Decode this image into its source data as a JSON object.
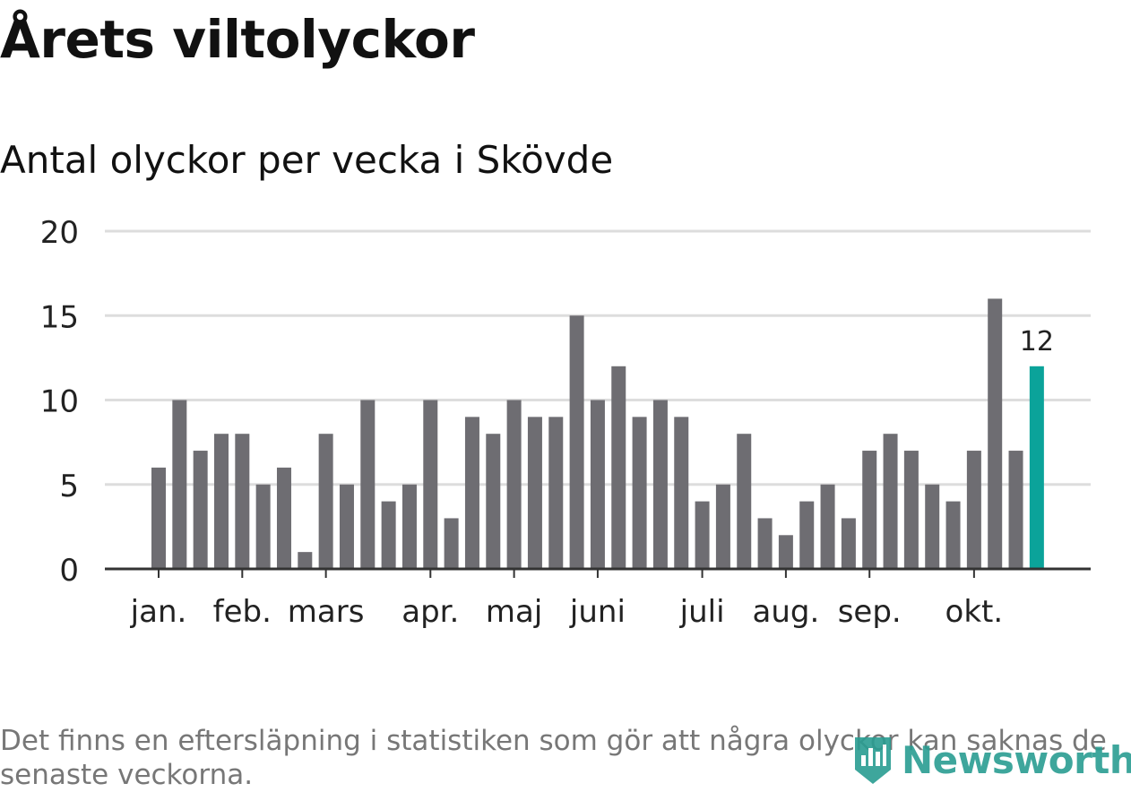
{
  "title": "Årets viltolyckor",
  "subtitle": "Antal olyckor per vecka i Skövde",
  "footnote": "Det finns en eftersläpning i statistiken som gör att några olyckor kan saknas de senaste veckorna.",
  "logo": {
    "text": "Newsworthy",
    "icon": "bar-chart-icon"
  },
  "colors": {
    "bar": "#6e6d72",
    "highlight": "#0ba39a",
    "grid": "#dddddd",
    "axis": "#333333"
  },
  "chart_data": {
    "type": "bar",
    "title": "Antal olyckor per vecka i Skövde",
    "xlabel": "",
    "ylabel": "",
    "ylim": [
      0,
      20
    ],
    "yticks": [
      0,
      5,
      10,
      15,
      20
    ],
    "grid": true,
    "values": [
      6,
      10,
      7,
      8,
      8,
      5,
      6,
      1,
      8,
      5,
      10,
      4,
      5,
      10,
      3,
      9,
      8,
      10,
      9,
      9,
      15,
      10,
      12,
      9,
      10,
      9,
      4,
      5,
      8,
      3,
      2,
      4,
      5,
      3,
      7,
      8,
      7,
      5,
      4,
      7,
      16,
      7,
      12
    ],
    "highlight_index": 42,
    "highlight_label": "12",
    "month_labels": [
      {
        "label": "jan.",
        "bar_index": 0.5
      },
      {
        "label": "feb.",
        "bar_index": 4.5
      },
      {
        "label": "mars",
        "bar_index": 8.5
      },
      {
        "label": "apr.",
        "bar_index": 13.5
      },
      {
        "label": "maj",
        "bar_index": 17.5
      },
      {
        "label": "juni",
        "bar_index": 21.5
      },
      {
        "label": "juli",
        "bar_index": 26.5
      },
      {
        "label": "aug.",
        "bar_index": 30.5
      },
      {
        "label": "sep.",
        "bar_index": 34.5
      },
      {
        "label": "okt.",
        "bar_index": 39.5
      }
    ]
  }
}
